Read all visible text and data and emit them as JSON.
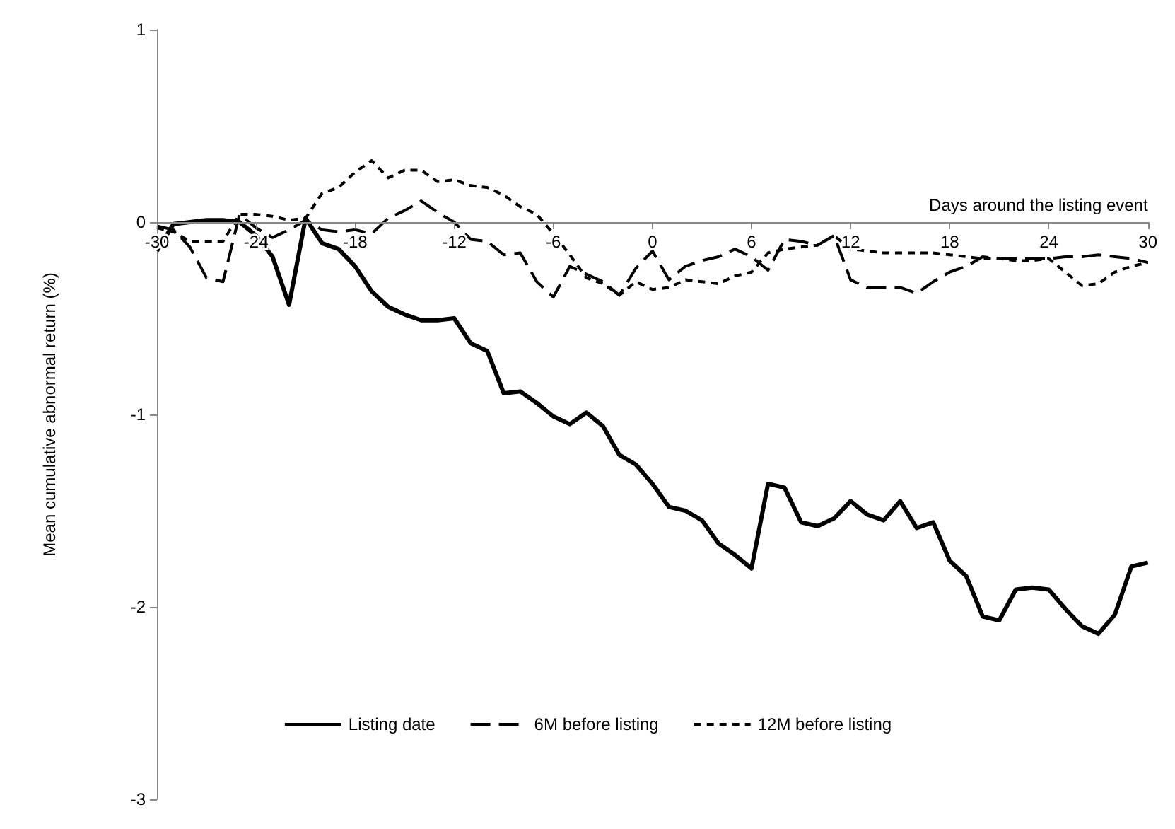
{
  "chart_data": {
    "type": "line",
    "xlabel": "Days around the listing event",
    "ylabel": "Mean cumulative abnormal return (%)",
    "x": [
      -30,
      -29,
      -28,
      -27,
      -26,
      -25,
      -24,
      -23,
      -22,
      -21,
      -20,
      -19,
      -18,
      -17,
      -16,
      -15,
      -14,
      -13,
      -12,
      -11,
      -10,
      -9,
      -8,
      -7,
      -6,
      -5,
      -4,
      -3,
      -2,
      -1,
      0,
      1,
      2,
      3,
      4,
      5,
      6,
      7,
      8,
      9,
      10,
      11,
      12,
      13,
      14,
      15,
      16,
      17,
      18,
      19,
      20,
      21,
      22,
      23,
      24,
      25,
      26,
      27,
      28,
      29,
      30
    ],
    "series": [
      {
        "name": "Listing date",
        "color": "#000000",
        "line_style": "solid",
        "values": [
          -0.15,
          -0.01,
          0.0,
          0.01,
          0.01,
          0.0,
          -0.07,
          -0.18,
          -0.43,
          0.02,
          -0.11,
          -0.14,
          -0.23,
          -0.36,
          -0.44,
          -0.48,
          -0.51,
          -0.51,
          -0.5,
          -0.63,
          -0.67,
          -0.89,
          -0.88,
          -0.94,
          -1.01,
          -1.05,
          -0.99,
          -1.06,
          -1.21,
          -1.26,
          -1.36,
          -1.48,
          -1.5,
          -1.55,
          -1.67,
          -1.73,
          -1.8,
          -1.36,
          -1.38,
          -1.56,
          -1.58,
          -1.54,
          -1.45,
          -1.52,
          -1.55,
          -1.45,
          -1.59,
          -1.56,
          -1.76,
          -1.84,
          -2.05,
          -2.07,
          -1.91,
          -1.9,
          -1.91,
          -2.01,
          -2.1,
          -2.14,
          -2.04,
          -1.79,
          -1.77
        ]
      },
      {
        "name": "6M before listing",
        "color": "#000000",
        "line_style": "dashed",
        "values": [
          -0.02,
          -0.04,
          -0.13,
          -0.29,
          -0.31,
          0.04,
          -0.03,
          -0.08,
          -0.04,
          0.01,
          -0.04,
          -0.05,
          -0.04,
          -0.06,
          0.02,
          0.06,
          0.11,
          0.05,
          0.0,
          -0.09,
          -0.1,
          -0.17,
          -0.16,
          -0.31,
          -0.39,
          -0.23,
          -0.27,
          -0.31,
          -0.38,
          -0.24,
          -0.15,
          -0.3,
          -0.23,
          -0.2,
          -0.18,
          -0.14,
          -0.18,
          -0.25,
          -0.09,
          -0.1,
          -0.12,
          -0.07,
          -0.3,
          -0.34,
          -0.34,
          -0.34,
          -0.37,
          -0.31,
          -0.26,
          -0.23,
          -0.18,
          -0.19,
          -0.19,
          -0.19,
          -0.19,
          -0.18,
          -0.18,
          -0.17,
          -0.18,
          -0.19,
          -0.21
        ]
      },
      {
        "name": "12M before listing",
        "color": "#000000",
        "line_style": "dotted",
        "values": [
          -0.03,
          -0.05,
          -0.1,
          -0.1,
          -0.1,
          0.04,
          0.04,
          0.03,
          0.01,
          0.02,
          0.15,
          0.18,
          0.26,
          0.32,
          0.23,
          0.27,
          0.27,
          0.21,
          0.22,
          0.19,
          0.18,
          0.14,
          0.08,
          0.04,
          -0.06,
          -0.17,
          -0.29,
          -0.32,
          -0.38,
          -0.31,
          -0.35,
          -0.34,
          -0.3,
          -0.31,
          -0.32,
          -0.28,
          -0.26,
          -0.16,
          -0.14,
          -0.13,
          -0.12,
          -0.07,
          -0.14,
          -0.15,
          -0.16,
          -0.16,
          -0.16,
          -0.16,
          -0.17,
          -0.18,
          -0.19,
          -0.19,
          -0.2,
          -0.2,
          -0.19,
          -0.26,
          -0.33,
          -0.32,
          -0.26,
          -0.23,
          -0.21
        ]
      }
    ],
    "xlim": [
      -30,
      30
    ],
    "xticks": [
      -30,
      -24,
      -18,
      -12,
      -6,
      0,
      6,
      12,
      18,
      24,
      30
    ],
    "ylim": [
      -3,
      1
    ],
    "yticks": [
      -3,
      -2,
      -1,
      0,
      1
    ],
    "grid": false,
    "legend": "bottom",
    "marker": "none"
  }
}
